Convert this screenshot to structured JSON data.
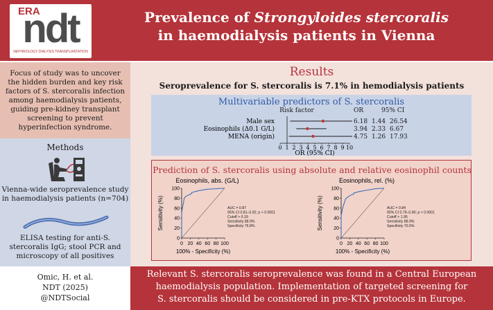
{
  "header": {
    "logo_top": "ERA",
    "logo_main": "ndt",
    "logo_sub": "NEPHROLOGY DIALYSIS TRANSPLANTATION",
    "title_line1_a": "Prevalence of ",
    "title_line1_b": "Strongyloides stercoralis",
    "title_line2": "in haemodialysis patients in Vienna"
  },
  "left": {
    "focus": "Focus of study was to uncover the hidden burden and key risk factors of S. stercoralis infection among haemodialysis patients, guiding pre-kidney transplant screening to prevent hyperinfection syndrome.",
    "methods_label": "Methods",
    "study": "Vienna-wide seroprevalence study in haemodialysis patients (n=704)",
    "elisa": "ELISA testing for anti-S. stercoralis IgG; stool PCR and microscopy of all positives",
    "citation_line1": "Omic, H. et al.",
    "citation_line2": "NDT (2025)",
    "citation_line3": "@NDTSocial"
  },
  "results": {
    "title": "Results",
    "subtitle": "Seroprevalence for S. stercoralis is 7.1% in hemodialysis patients"
  },
  "forest": {
    "title": "Multivariable predictors of S. stercoralis",
    "col_risk": "Risk factor",
    "col_or": "OR",
    "col_ci": "95% CI",
    "xlabel": "OR (95% CI)",
    "rows": [
      {
        "label": "Male sex",
        "or": "6.18",
        "lo": "1.44",
        "hi": "26.54"
      },
      {
        "label": "Eosinophils (Δ0.1 G/L)",
        "or": "3.94",
        "lo": "2.33",
        "hi": "6.67"
      },
      {
        "label": "MENA (origin)",
        "or": "4.75",
        "lo": "1.26",
        "hi": "17.93"
      }
    ]
  },
  "chart_data": [
    {
      "type": "forest",
      "title": "Multivariable predictors of S. stercoralis",
      "xlabel": "OR (95% CI)",
      "xlim": [
        0,
        10
      ],
      "xticks": [
        0,
        1,
        2,
        3,
        4,
        5,
        6,
        7,
        8,
        9,
        10
      ],
      "series": [
        {
          "name": "Male sex",
          "or": 6.18,
          "ci": [
            1.44,
            26.54
          ]
        },
        {
          "name": "Eosinophils (Δ0.1 G/L)",
          "or": 3.94,
          "ci": [
            2.33,
            6.67
          ]
        },
        {
          "name": "MENA (origin)",
          "or": 4.75,
          "ci": [
            1.26,
            17.93
          ]
        }
      ]
    },
    {
      "type": "line",
      "title": "Eosinophils, abs. (G/L)",
      "xlabel": "100% - Specificity (%)",
      "ylabel": "Sensitivity (%)",
      "xlim": [
        0,
        100
      ],
      "ylim": [
        0,
        100
      ],
      "xticks": [
        0,
        20,
        40,
        60,
        80,
        100
      ],
      "yticks": [
        0,
        20,
        40,
        60,
        80,
        100
      ],
      "x": [
        0,
        0,
        2,
        4,
        5,
        6,
        10,
        15,
        20,
        23,
        23,
        30,
        40,
        60,
        100
      ],
      "y": [
        0,
        50,
        62,
        70,
        75,
        80,
        84,
        86,
        88,
        89,
        91,
        93,
        95,
        98,
        100
      ],
      "annotations": [
        "AUC = 0.87",
        "95% CI 0.81–0.92; p < 0.0001",
        "Cutoff > 0.19",
        "Sensitivity 88.9%",
        "Specificity 76.8%"
      ]
    },
    {
      "type": "line",
      "title": "Eosinophils, rel. (%)",
      "xlabel": "100% - Specificity (%)",
      "ylabel": "Sensitivity (%)",
      "xlim": [
        0,
        100
      ],
      "ylim": [
        0,
        100
      ],
      "xticks": [
        0,
        20,
        40,
        60,
        80,
        100
      ],
      "yticks": [
        0,
        20,
        40,
        60,
        80,
        100
      ],
      "x": [
        0,
        0,
        3,
        5,
        8,
        10,
        15,
        20,
        25,
        29,
        29,
        40,
        60,
        80,
        100
      ],
      "y": [
        0,
        45,
        58,
        65,
        72,
        78,
        82,
        85,
        87,
        88,
        90,
        93,
        96,
        99,
        100
      ],
      "annotations": [
        "AUC = 0.84",
        "95% CI 0.79–0.90; p < 0.0001",
        "Cutoff > 1.95",
        "Sensitivity 88.9%",
        "Specificity 70.5%"
      ]
    }
  ],
  "prediction": {
    "title": "Prediction of S. stercoralis using absolute and relative eosinophil counts"
  },
  "footer": {
    "line1": "Relevant S. stercoralis seroprevalence was found in a Central European",
    "line2": "haemodialysis population. Implementation of targeted screening for",
    "line3": "S. stercoralis should be considered in pre-KTX protocols in Europe."
  },
  "colors": {
    "brand_red": "#b5333a",
    "blue": "#2f5aa8",
    "roc_line": "#3d6fb8",
    "marker": "#c0392b"
  }
}
